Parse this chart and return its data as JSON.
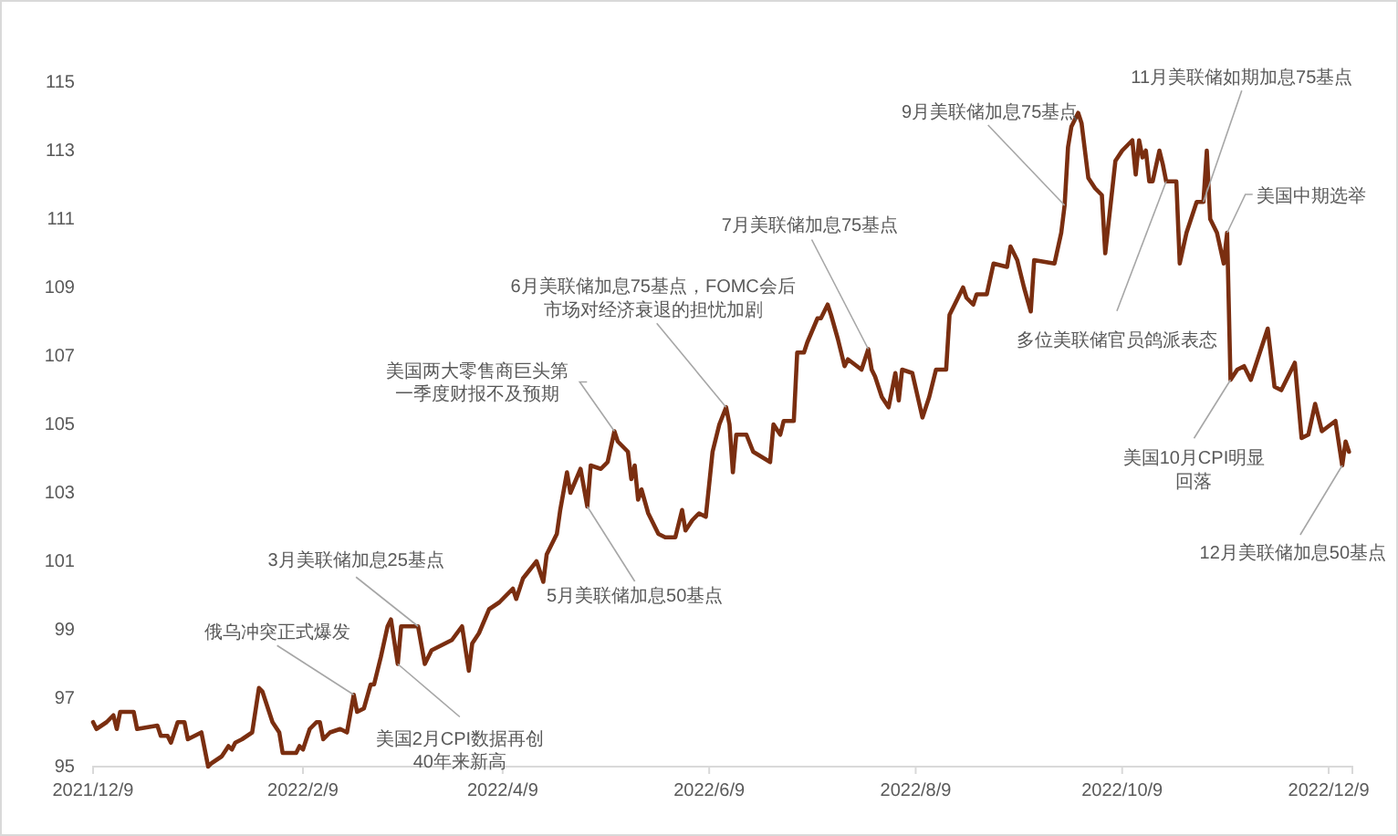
{
  "chart_data": {
    "type": "line",
    "color": "#7a2e10",
    "x": [
      "2021-12-09",
      "2021-12-10",
      "2021-12-13",
      "2021-12-15",
      "2021-12-16",
      "2021-12-17",
      "2021-12-21",
      "2021-12-22",
      "2021-12-28",
      "2021-12-29",
      "2021-12-31",
      "2022-01-01",
      "2022-01-03",
      "2022-01-05",
      "2022-01-06",
      "2022-01-08",
      "2022-01-10",
      "2022-01-12",
      "2022-01-13",
      "2022-01-16",
      "2022-01-18",
      "2022-01-19",
      "2022-01-20",
      "2022-01-22",
      "2022-01-25",
      "2022-01-27",
      "2022-01-28",
      "2022-01-31",
      "2022-02-02",
      "2022-02-03",
      "2022-02-06",
      "2022-02-07",
      "2022-02-08",
      "2022-02-09",
      "2022-02-11",
      "2022-02-13",
      "2022-02-14",
      "2022-02-15",
      "2022-02-17",
      "2022-02-20",
      "2022-02-22",
      "2022-02-24",
      "2022-02-25",
      "2022-02-27",
      "2022-03-01",
      "2022-03-02",
      "2022-03-04",
      "2022-03-06",
      "2022-03-07",
      "2022-03-09",
      "2022-03-10",
      "2022-03-12",
      "2022-03-15",
      "2022-03-17",
      "2022-03-19",
      "2022-03-23",
      "2022-03-25",
      "2022-03-28",
      "2022-03-30",
      "2022-03-31",
      "2022-04-02",
      "2022-04-05",
      "2022-04-08",
      "2022-04-10",
      "2022-04-12",
      "2022-04-13",
      "2022-04-15",
      "2022-04-19",
      "2022-04-21",
      "2022-04-22",
      "2022-04-25",
      "2022-04-26",
      "2022-04-28",
      "2022-04-29",
      "2022-05-02",
      "2022-05-04",
      "2022-05-05",
      "2022-05-08",
      "2022-05-10",
      "2022-05-12",
      "2022-05-13",
      "2022-05-16",
      "2022-05-17",
      "2022-05-18",
      "2022-05-19",
      "2022-05-20",
      "2022-05-22",
      "2022-05-25",
      "2022-05-27",
      "2022-05-30",
      "2022-06-01",
      "2022-06-02",
      "2022-06-04",
      "2022-06-06",
      "2022-06-08",
      "2022-06-10",
      "2022-06-12",
      "2022-06-14",
      "2022-06-15",
      "2022-06-16",
      "2022-06-17",
      "2022-06-20",
      "2022-06-22",
      "2022-06-27",
      "2022-06-28",
      "2022-06-30",
      "2022-07-01",
      "2022-07-04",
      "2022-07-05",
      "2022-07-07",
      "2022-07-08",
      "2022-07-11",
      "2022-07-12",
      "2022-07-14",
      "2022-07-15",
      "2022-07-17",
      "2022-07-19",
      "2022-07-20",
      "2022-07-24",
      "2022-07-26",
      "2022-07-27",
      "2022-07-28",
      "2022-07-30",
      "2022-08-01",
      "2022-08-03",
      "2022-08-04",
      "2022-08-05",
      "2022-08-08",
      "2022-08-11",
      "2022-08-13",
      "2022-08-15",
      "2022-08-18",
      "2022-08-19",
      "2022-08-23",
      "2022-08-24",
      "2022-08-26",
      "2022-08-27",
      "2022-08-30",
      "2022-09-01",
      "2022-09-05",
      "2022-09-06",
      "2022-09-08",
      "2022-09-10",
      "2022-09-12",
      "2022-09-13",
      "2022-09-19",
      "2022-09-21",
      "2022-09-22",
      "2022-09-23",
      "2022-09-24",
      "2022-09-26",
      "2022-09-27",
      "2022-09-29",
      "2022-10-01",
      "2022-10-03",
      "2022-10-04",
      "2022-10-07",
      "2022-10-09",
      "2022-10-11",
      "2022-10-12",
      "2022-10-13",
      "2022-10-14",
      "2022-10-15",
      "2022-10-16",
      "2022-10-17",
      "2022-10-18",
      "2022-10-20",
      "2022-10-21",
      "2022-10-22",
      "2022-10-25",
      "2022-10-26",
      "2022-10-28",
      "2022-10-31",
      "2022-11-02",
      "2022-11-03",
      "2022-11-04",
      "2022-11-06",
      "2022-11-08",
      "2022-11-09",
      "2022-11-10",
      "2022-11-12",
      "2022-11-14",
      "2022-11-16",
      "2022-11-18",
      "2022-11-21",
      "2022-11-23",
      "2022-11-25",
      "2022-11-29",
      "2022-12-01",
      "2022-12-03",
      "2022-12-05",
      "2022-12-07",
      "2022-12-11",
      "2022-12-13",
      "2022-12-14",
      "2022-12-15"
    ],
    "values": [
      96.3,
      96.1,
      96.3,
      96.5,
      96.1,
      96.6,
      96.6,
      96.1,
      96.2,
      95.9,
      95.9,
      95.7,
      96.3,
      96.3,
      95.8,
      95.9,
      96.0,
      95.0,
      95.1,
      95.3,
      95.6,
      95.5,
      95.7,
      95.8,
      96.0,
      97.3,
      97.2,
      96.3,
      96.0,
      95.4,
      95.4,
      95.4,
      95.6,
      95.5,
      96.1,
      96.3,
      96.3,
      95.8,
      96.0,
      96.1,
      96.0,
      97.1,
      96.6,
      96.7,
      97.4,
      97.4,
      98.2,
      99.1,
      99.3,
      98.0,
      99.1,
      99.1,
      99.1,
      98.0,
      98.4,
      98.6,
      98.7,
      99.1,
      97.8,
      98.6,
      98.9,
      99.6,
      99.8,
      100.0,
      100.2,
      99.9,
      100.5,
      101.0,
      100.4,
      101.2,
      101.8,
      102.5,
      103.6,
      103.0,
      103.7,
      102.6,
      103.8,
      103.7,
      103.9,
      104.8,
      104.5,
      104.2,
      103.4,
      103.8,
      102.8,
      103.1,
      102.4,
      101.8,
      101.7,
      101.7,
      102.5,
      101.9,
      102.2,
      102.4,
      102.3,
      104.2,
      105.0,
      105.5,
      105.0,
      103.6,
      104.7,
      104.7,
      104.2,
      103.9,
      105.0,
      104.7,
      105.1,
      105.1,
      107.1,
      107.1,
      107.4,
      108.1,
      108.1,
      108.5,
      108.2,
      107.5,
      106.7,
      106.9,
      106.6,
      107.2,
      106.6,
      106.4,
      105.8,
      105.5,
      106.5,
      105.7,
      106.6,
      106.5,
      105.2,
      105.8,
      106.6,
      106.6,
      108.2,
      109.0,
      108.7,
      108.5,
      108.8,
      108.8,
      109.7,
      109.6,
      110.2,
      109.8,
      109.0,
      108.3,
      109.8,
      109.7,
      110.6,
      111.4,
      113.1,
      113.7,
      114.1,
      113.8,
      112.2,
      111.9,
      111.7,
      110.0,
      112.7,
      113.0,
      113.2,
      113.3,
      112.3,
      113.3,
      112.8,
      113.0,
      112.1,
      112.1,
      113.0,
      112.6,
      112.1,
      112.1,
      109.7,
      110.6,
      111.5,
      111.5,
      113.0,
      111.0,
      110.6,
      109.7,
      110.6,
      106.3,
      106.6,
      106.7,
      106.3,
      106.9,
      107.8,
      106.1,
      106.0,
      106.8,
      104.6,
      104.7,
      105.6,
      104.8,
      105.1,
      103.8,
      104.5,
      104.2
    ],
    "xlim": [
      "2021-12-09",
      "2022-12-16"
    ],
    "xticks": [
      {
        "value": "2021-12-09",
        "label": "2021/12/9"
      },
      {
        "value": "2022-02-09",
        "label": "2022/2/9"
      },
      {
        "value": "2022-04-09",
        "label": "2022/4/9"
      },
      {
        "value": "2022-06-09",
        "label": "2022/6/9"
      },
      {
        "value": "2022-08-09",
        "label": "2022/8/9"
      },
      {
        "value": "2022-10-09",
        "label": "2022/10/9"
      },
      {
        "value": "2022-12-09",
        "label": "2022/12/9"
      }
    ],
    "ylim": [
      95,
      115
    ],
    "yticks": [
      95,
      97,
      99,
      101,
      103,
      105,
      107,
      109,
      111,
      113,
      115
    ],
    "annotations": [
      {
        "text": "俄乌冲突正式爆发",
        "x": "2022-02-24",
        "y": 97.1
      },
      {
        "text": "美国2月CPI数据再创40年来新高",
        "x": "2022-03-09",
        "y": 98.0
      },
      {
        "text": "3月美联储加息25基点",
        "x": "2022-03-15",
        "y": 99.1
      },
      {
        "text": "5月美联储加息50基点",
        "x": "2022-05-04",
        "y": 102.6
      },
      {
        "text": "美国两大零售商巨头第一季度财报不及预期",
        "x": "2022-05-12",
        "y": 104.8
      },
      {
        "text": "6月美联储加息75基点，FOMC会后市场对经济衰退的担忧加剧",
        "x": "2022-06-14",
        "y": 105.5
      },
      {
        "text": "7月美联储加息75基点",
        "x": "2022-07-26",
        "y": 107.2
      },
      {
        "text": "9月美联储加息75基点",
        "x": "2022-09-22",
        "y": 111.4
      },
      {
        "text": "多位美联储官员鸽派表态",
        "x": "2022-10-22",
        "y": 112.1
      },
      {
        "text": "11月美联储如期加息75基点",
        "x": "2022-11-02",
        "y": 111.5
      },
      {
        "text": "美国中期选举",
        "x": "2022-11-09",
        "y": 110.6
      },
      {
        "text": "美国10月CPI明显回落",
        "x": "2022-11-10",
        "y": 106.3
      },
      {
        "text": "12月美联储加息50基点",
        "x": "2022-12-13",
        "y": 103.8
      }
    ]
  }
}
